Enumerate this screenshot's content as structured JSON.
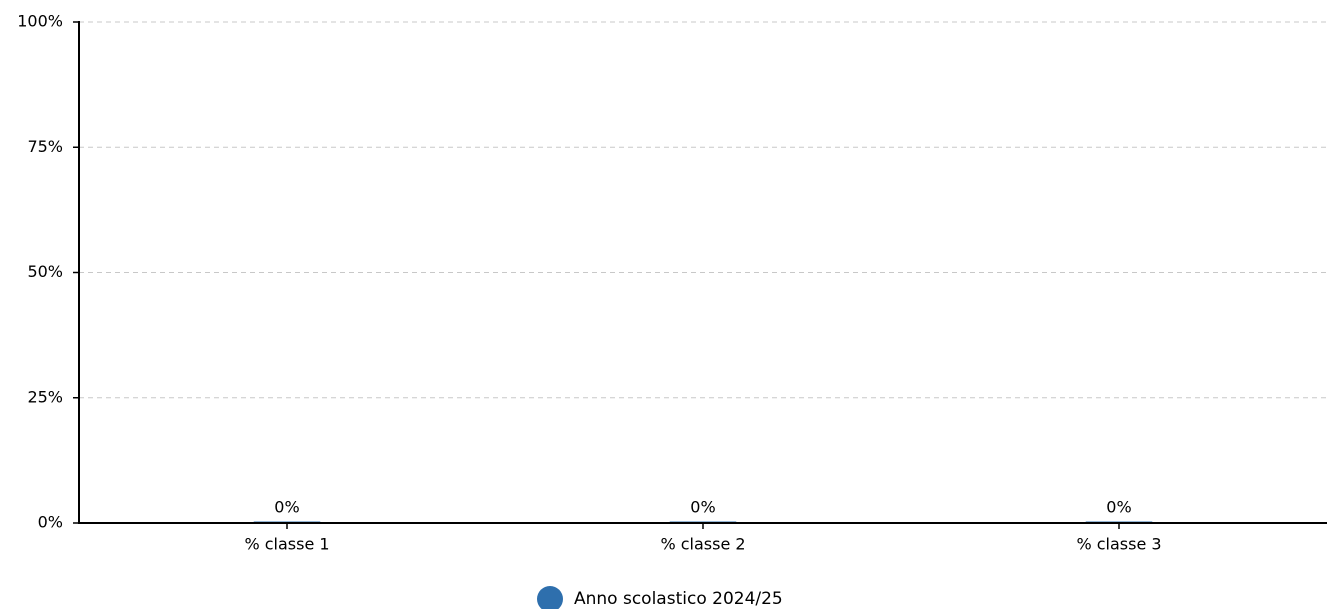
{
  "chart_data": {
    "type": "bar",
    "categories": [
      "% classe 1",
      "% classe 2",
      "% classe 3"
    ],
    "series": [
      {
        "name": "Anno scolastico 2024/25",
        "values": [
          0,
          0,
          0
        ],
        "labels": [
          "0%",
          "0%",
          "0%"
        ],
        "color": "#2e6fad"
      }
    ],
    "ylim": [
      0,
      100
    ],
    "yticks": [
      0,
      25,
      50,
      75,
      100
    ],
    "ytick_labels": [
      "0%",
      "25%",
      "50%",
      "75%",
      "100%"
    ],
    "grid": true,
    "legend_position": "bottom-center"
  }
}
